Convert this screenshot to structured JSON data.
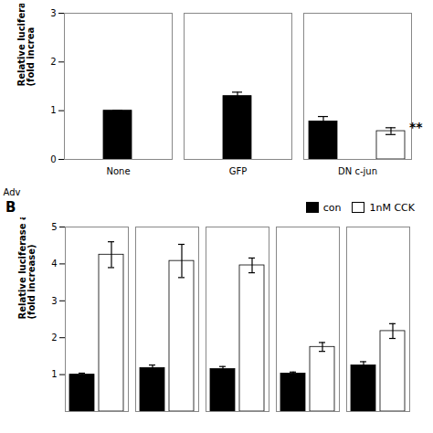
{
  "chart_data": [
    {
      "type": "bar",
      "categories": [
        "None",
        "GFP",
        "DN c-jun"
      ],
      "series": [
        {
          "color": "black",
          "values": [
            1.0,
            1.3,
            0.78
          ],
          "errors": [
            0.0,
            0.08,
            0.1
          ]
        },
        {
          "color": "white",
          "values": [
            null,
            null,
            0.58
          ],
          "errors": [
            null,
            null,
            0.07
          ]
        }
      ],
      "xlabel": "Adv",
      "ylabel": "Relative lucifera\n(fold increa",
      "ylim": [
        0,
        3
      ],
      "yticks": [
        0,
        1,
        2,
        3
      ],
      "annotations": [
        {
          "text": "**",
          "category": "DN c-jun"
        }
      ]
    },
    {
      "type": "bar",
      "title": "B",
      "categories": [
        null,
        null,
        null,
        null,
        null
      ],
      "series": [
        {
          "name": "con",
          "color": "black",
          "values": [
            1.0,
            1.18,
            1.15,
            1.03,
            1.25
          ],
          "errors": [
            0.04,
            0.08,
            0.07,
            0.04,
            0.1
          ]
        },
        {
          "name": "1nM CCK",
          "color": "white",
          "values": [
            4.25,
            4.08,
            3.96,
            1.75,
            2.18
          ],
          "errors": [
            0.35,
            0.45,
            0.2,
            0.12,
            0.2
          ]
        }
      ],
      "ylabel": "Relative luciferase activity\n(fold increase)",
      "ylim": [
        0,
        5
      ],
      "yticks": [
        1,
        2,
        3,
        4,
        5
      ],
      "legend": "upper right",
      "tick_labels": "y"
    }
  ]
}
